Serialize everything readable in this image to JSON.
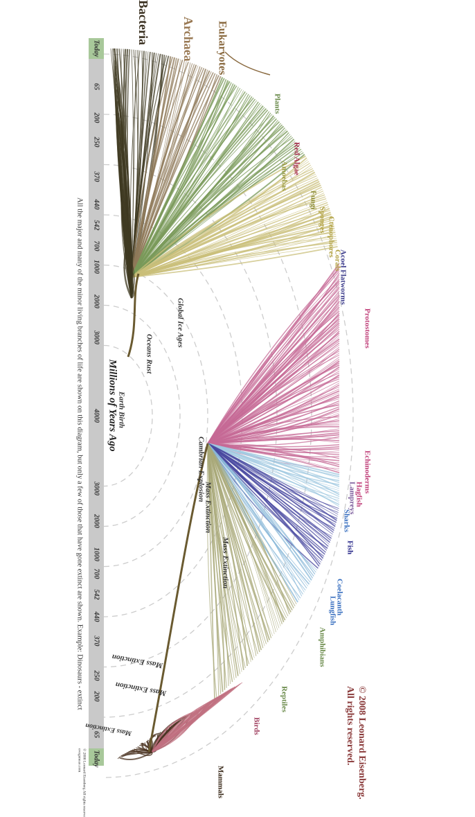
{
  "copyright": [
    "© 2008 Leonard Eisenberg.",
    "All rights reserved."
  ],
  "domains": [
    "Bacteria",
    "Archaea",
    "Eukaryotes"
  ],
  "groups": [
    "Plants",
    "Red Algae",
    "Amoebas",
    "Fungi",
    "Sponges",
    "Ctenophores",
    "Corals",
    "Acoel Flatworms",
    "Protostomes",
    "Echinoderms",
    "Hagfish",
    "Lampreys",
    "Sharks",
    "Fish",
    "Coelacanth",
    "Lungfish",
    "Amphibians",
    "Reptiles",
    "Birds",
    "Mammals"
  ],
  "eras": [
    "Global Ice Ages",
    "Oceans Rust",
    "Earth Birth",
    "Cambrian Explosion",
    "Mass Extinction",
    "Mass Extinction",
    "Mass Extinction",
    "Mass Extinction",
    "Mass Extinction"
  ],
  "axis_title": "Millions of Years Ago",
  "time_axis": [
    "Today",
    "65",
    "200",
    "250",
    "370",
    "440",
    "542",
    "700",
    "1000",
    "2000",
    "3000",
    "4000",
    "3000",
    "2000",
    "1000",
    "700",
    "542",
    "440",
    "370",
    "250",
    "200",
    "65",
    "Today"
  ],
  "caption": "All the major and many of the minor living branches of life are shown on this diagram, but only a few of those that have gone extinct are shown. Example: Dinosaurs - extinct",
  "footer": [
    "© 2008 Leonard Eisenberg All rights reserved.",
    "evogeneao.com"
  ]
}
